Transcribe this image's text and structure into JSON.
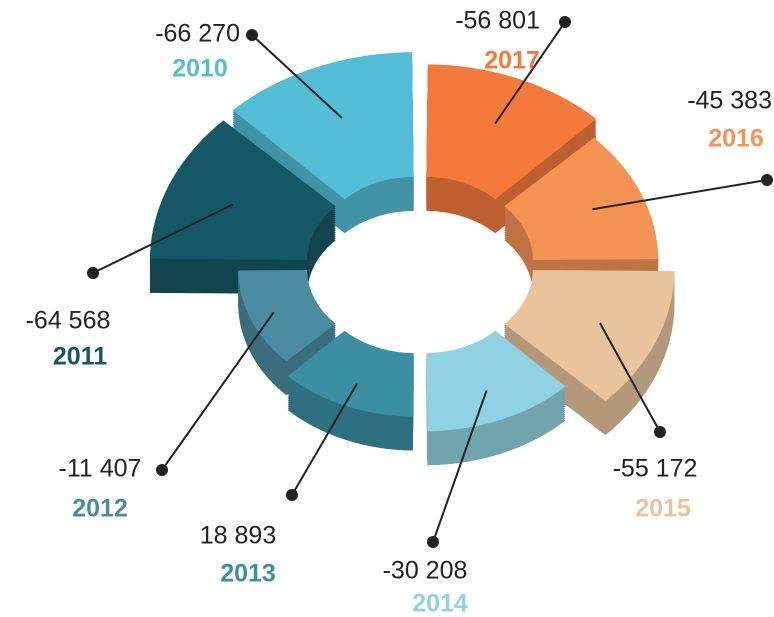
{
  "chart_data": {
    "type": "pie",
    "categories": [
      "2017",
      "2016",
      "2015",
      "2014",
      "2013",
      "2012",
      "2011",
      "2010"
    ],
    "values": [
      -56801,
      -45383,
      -55172,
      -30208,
      18893,
      -11407,
      -64568,
      -66270
    ],
    "value_labels": [
      "-56 801",
      "-45 383",
      "-55 172",
      "-30 208",
      "18 893",
      "-11 407",
      "-64 568",
      "-66 270"
    ],
    "colors": [
      "#f47a3c",
      "#f39455",
      "#e8c39c",
      "#8fd3e2",
      "#3a8fa3",
      "#4a8ca0",
      "#145866",
      "#52bdd4"
    ]
  }
}
